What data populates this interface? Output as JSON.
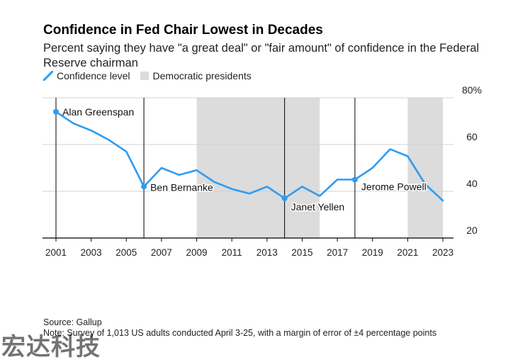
{
  "chart_data": {
    "type": "line",
    "title": "Confidence in Fed Chair Lowest in Decades",
    "subtitle": "Percent saying they have \"a great deal\" or \"fair amount\" of confidence in the Federal Reserve chairman",
    "legend": {
      "placement": "top-left",
      "line_label": "Confidence level",
      "shade_label": "Democratic presidents"
    },
    "colors": {
      "line": "#2d9cf0",
      "shade": "#dcdcdc",
      "axis": "#000000",
      "grid": "#d0d0d0"
    },
    "series": [
      {
        "name": "Confidence level",
        "x": [
          2001,
          2002,
          2003,
          2004,
          2005,
          2006,
          2007,
          2008,
          2009,
          2010,
          2011,
          2012,
          2013,
          2014,
          2015,
          2016,
          2017,
          2018,
          2019,
          2020,
          2021,
          2022,
          2023
        ],
        "values": [
          74,
          69,
          66,
          62,
          57,
          42,
          50,
          47,
          49,
          44,
          41,
          39,
          42,
          37,
          42,
          38,
          45,
          45,
          50,
          58,
          55,
          43,
          36
        ]
      }
    ],
    "shaded_ranges": [
      [
        2009,
        2016
      ],
      [
        2021,
        2023
      ]
    ],
    "chair_markers": [
      {
        "year": 2001,
        "name": "Alan Greenspan"
      },
      {
        "year": 2006,
        "name": "Ben Bernanke"
      },
      {
        "year": 2014,
        "name": "Janet Yellen"
      },
      {
        "year": 2018,
        "name": "Jerome Powell"
      }
    ],
    "x_ticks": [
      2001,
      2003,
      2005,
      2007,
      2009,
      2011,
      2013,
      2015,
      2017,
      2019,
      2021,
      2023
    ],
    "y_ticks": [
      20,
      40,
      60,
      80
    ],
    "y_tick_labels": [
      "20",
      "40",
      "60",
      "80%"
    ],
    "xlim": [
      2001,
      2023
    ],
    "ylim": [
      20,
      80
    ],
    "grid": true
  },
  "footer": {
    "source": "Source: Gallup",
    "note": "Note: Survey of 1,013 US adults conducted April 3-25, with a margin of error of ±4 percentage points"
  },
  "watermark": {
    "text": "宏达科技"
  }
}
